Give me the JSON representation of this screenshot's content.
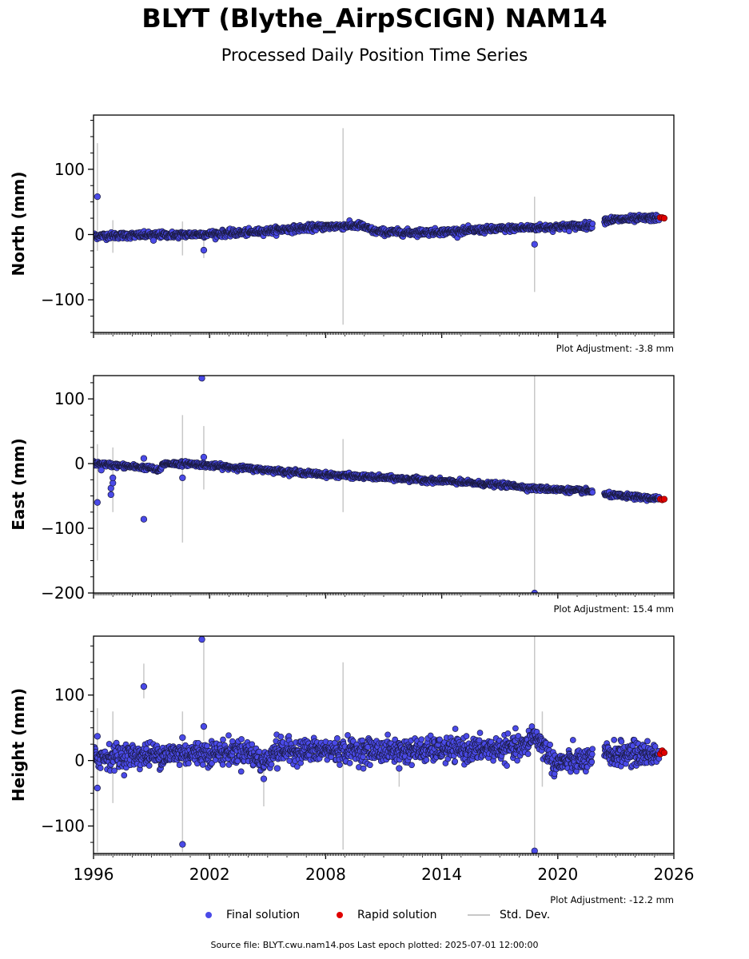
{
  "header": {
    "title": "BLYT (Blythe_AirpSCIGN) NAM14",
    "subtitle": "Processed Daily Position Time Series"
  },
  "legend": {
    "final_label": "Final solution",
    "rapid_label": "Rapid solution",
    "stddev_label": "Std. Dev."
  },
  "footer": {
    "source": "Source file: BLYT.cwu.nam14.pos  Last epoch plotted: 2025-07-01 12:00:00"
  },
  "colors": {
    "final": "#4a4ae8",
    "final_edge": "#1a1a40",
    "rapid": "#e00000",
    "stddev": "#c8c8c8"
  },
  "chart_data": [
    {
      "type": "scatter",
      "ylabel": "North (mm)",
      "adjustment": "Plot Adjustment: -3.8 mm",
      "xlim": [
        1996,
        2026
      ],
      "ylim": [
        -150,
        183
      ],
      "yticks": [
        -100,
        0,
        100
      ],
      "xticks": [
        1996,
        2002,
        2008,
        2014,
        2020,
        2026
      ],
      "xtick_labels_shown": false,
      "trend": [
        [
          1996.0,
          -2
        ],
        [
          1998.5,
          -1
        ],
        [
          2001.0,
          0
        ],
        [
          2004.0,
          3
        ],
        [
          2006.0,
          8
        ],
        [
          2008.0,
          12
        ],
        [
          2009.8,
          14
        ],
        [
          2010.5,
          5
        ],
        [
          2012.0,
          3
        ],
        [
          2014.0,
          4
        ],
        [
          2016.0,
          7
        ],
        [
          2018.0,
          10
        ],
        [
          2019.5,
          11
        ],
        [
          2021.0,
          13
        ],
        [
          2021.8,
          14
        ],
        [
          2022.4,
          22
        ],
        [
          2025.5,
          26
        ]
      ],
      "gaps": [
        [
          2021.8,
          2022.4
        ]
      ],
      "noise": 2.5,
      "outliers": [
        [
          1996.2,
          58
        ],
        [
          1999.1,
          -9
        ],
        [
          2001.7,
          -24
        ],
        [
          2018.8,
          -15
        ]
      ],
      "errorbars": [
        [
          1996.2,
          -25,
          140
        ],
        [
          1997.0,
          -28,
          22
        ],
        [
          2000.6,
          -32,
          20
        ],
        [
          2001.7,
          -36,
          5
        ],
        [
          2008.9,
          -138,
          163
        ],
        [
          2018.8,
          -88,
          58
        ]
      ],
      "rapid": [
        [
          2025.3,
          26
        ],
        [
          2025.4,
          26
        ],
        [
          2025.5,
          25
        ]
      ]
    },
    {
      "type": "scatter",
      "ylabel": "East (mm)",
      "adjustment": "Plot Adjustment: 15.4 mm",
      "xlim": [
        1996,
        2026
      ],
      "ylim": [
        -200,
        136
      ],
      "yticks": [
        -200,
        -100,
        0,
        100
      ],
      "xticks": [
        1996,
        2002,
        2008,
        2014,
        2020,
        2026
      ],
      "xtick_labels_shown": false,
      "trend": [
        [
          1996.0,
          0
        ],
        [
          1999.0,
          -7
        ],
        [
          1999.4,
          -12
        ],
        [
          1999.6,
          0
        ],
        [
          2001.0,
          0
        ],
        [
          2002.0,
          -3
        ],
        [
          2008.0,
          -17
        ],
        [
          2014.0,
          -27
        ],
        [
          2018.0,
          -35
        ],
        [
          2018.5,
          -38
        ],
        [
          2021.8,
          -43
        ],
        [
          2022.4,
          -48
        ],
        [
          2025.5,
          -55
        ]
      ],
      "gaps": [
        [
          2021.8,
          2022.4
        ]
      ],
      "noise": 1.8,
      "outliers": [
        [
          1996.2,
          -60
        ],
        [
          1996.4,
          -10
        ],
        [
          1996.9,
          -48
        ],
        [
          1996.9,
          -38
        ],
        [
          1997.0,
          -30
        ],
        [
          1997.0,
          -22
        ],
        [
          1998.6,
          8
        ],
        [
          1998.6,
          -86
        ],
        [
          2000.6,
          -22
        ],
        [
          2001.6,
          132
        ],
        [
          2001.7,
          10
        ],
        [
          2018.8,
          -200
        ]
      ],
      "errorbars": [
        [
          1996.2,
          -150,
          30
        ],
        [
          1997.0,
          -75,
          25
        ],
        [
          2000.6,
          -122,
          75
        ],
        [
          2001.7,
          -40,
          58
        ],
        [
          2008.9,
          -75,
          38
        ],
        [
          2018.8,
          -200,
          136
        ]
      ],
      "rapid": [
        [
          2025.3,
          -55
        ],
        [
          2025.4,
          -56
        ],
        [
          2025.5,
          -55
        ]
      ]
    },
    {
      "type": "scatter",
      "ylabel": "Height (mm)",
      "adjustment": "Plot Adjustment: -12.2 mm",
      "xlim": [
        1996,
        2026
      ],
      "ylim": [
        -142,
        190
      ],
      "yticks": [
        -100,
        0,
        100
      ],
      "xticks": [
        1996,
        2002,
        2008,
        2014,
        2020,
        2026
      ],
      "xtick_labels_shown": true,
      "trend": [
        [
          1996.0,
          5
        ],
        [
          1998.0,
          8
        ],
        [
          2000.0,
          10
        ],
        [
          2002.0,
          12
        ],
        [
          2004.0,
          14
        ],
        [
          2004.8,
          -5
        ],
        [
          2005.3,
          15
        ],
        [
          2008.0,
          15
        ],
        [
          2012.0,
          15
        ],
        [
          2016.0,
          17
        ],
        [
          2018.3,
          20
        ],
        [
          2018.7,
          40
        ],
        [
          2019.2,
          25
        ],
        [
          2019.8,
          -5
        ],
        [
          2021.0,
          0
        ],
        [
          2021.8,
          0
        ],
        [
          2022.4,
          10
        ],
        [
          2025.5,
          10
        ]
      ],
      "gaps": [
        [
          2021.8,
          2022.4
        ]
      ],
      "noise": 9,
      "outliers": [
        [
          1996.2,
          -42
        ],
        [
          1996.2,
          37
        ],
        [
          1998.6,
          113
        ],
        [
          2000.6,
          -128
        ],
        [
          2000.6,
          35
        ],
        [
          2001.6,
          185
        ],
        [
          2001.7,
          52
        ],
        [
          2004.8,
          -28
        ],
        [
          2005.5,
          -12
        ],
        [
          2011.8,
          -12
        ],
        [
          2018.8,
          -138
        ]
      ],
      "errorbars": [
        [
          1996.2,
          -140,
          80
        ],
        [
          1997.0,
          -65,
          75
        ],
        [
          1998.6,
          95,
          148
        ],
        [
          2000.6,
          -140,
          75
        ],
        [
          2001.7,
          30,
          190
        ],
        [
          2004.8,
          -70,
          10
        ],
        [
          2008.9,
          -136,
          150
        ],
        [
          2011.8,
          -40,
          5
        ],
        [
          2018.8,
          -142,
          190
        ],
        [
          2019.2,
          -40,
          75
        ]
      ],
      "rapid": [
        [
          2025.3,
          10
        ],
        [
          2025.4,
          15
        ],
        [
          2025.5,
          12
        ]
      ]
    }
  ]
}
